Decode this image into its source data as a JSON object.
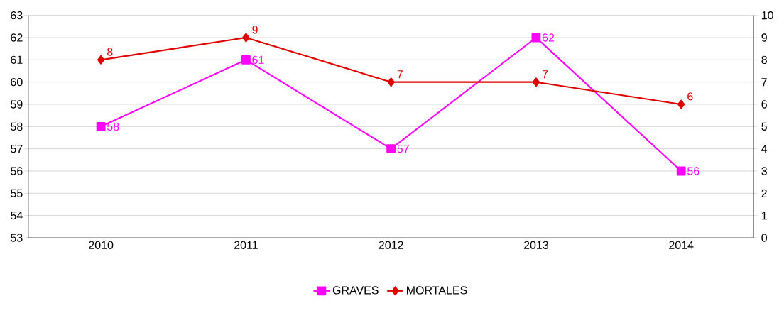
{
  "chart_data": {
    "type": "line",
    "categories": [
      "2010",
      "2011",
      "2012",
      "2013",
      "2014"
    ],
    "series": [
      {
        "name": "GRAVES",
        "color": "#ff00ff",
        "marker": "square",
        "values": [
          58,
          61,
          57,
          62,
          56
        ]
      },
      {
        "name": "MORTALES",
        "color": "#e00000",
        "marker": "diamond",
        "axis": "y2",
        "values": [
          8,
          9,
          7,
          7,
          6
        ]
      }
    ],
    "ylim": [
      53,
      63
    ],
    "yticks": [
      53,
      54,
      55,
      56,
      57,
      58,
      59,
      60,
      61,
      62,
      63
    ],
    "y2lim": [
      0,
      10
    ],
    "y2ticks": [
      0,
      1,
      2,
      3,
      4,
      5,
      6,
      7,
      8,
      9,
      10
    ],
    "grid": "y",
    "legend": "bottom",
    "data_labels": true,
    "line_style": "solid"
  }
}
